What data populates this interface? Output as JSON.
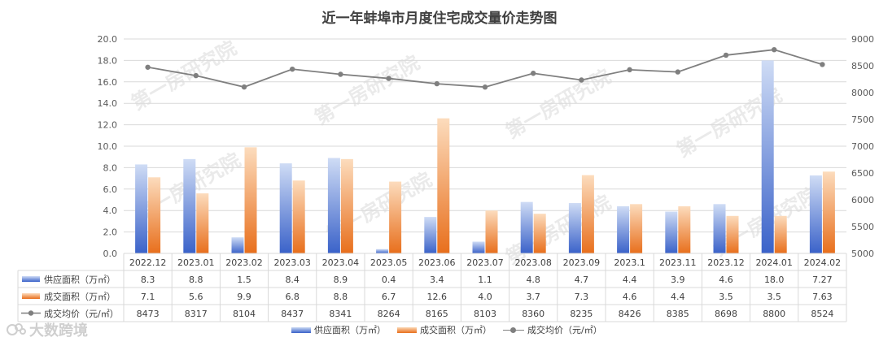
{
  "chart_data": {
    "type": "bar",
    "title": "近一年蚌埠市月度住宅成交量价走势图",
    "categories": [
      "2022.12",
      "2023.01",
      "2023.02",
      "2023.03",
      "2023.04",
      "2023.05",
      "2023.06",
      "2023.07",
      "2023.08",
      "2023.09",
      "2023.1",
      "2023.11",
      "2023.12",
      "2024.01",
      "2024.02"
    ],
    "series": [
      {
        "name": "供应面积（万㎡）",
        "type": "bar",
        "axis": "left",
        "color": "#4472c4",
        "values": [
          8.3,
          8.8,
          1.5,
          8.4,
          8.9,
          0.4,
          3.4,
          1.1,
          4.8,
          4.7,
          4.4,
          3.9,
          4.6,
          18.0,
          7.27
        ],
        "labels": [
          "8.3",
          "8.8",
          "1.5",
          "8.4",
          "8.9",
          "0.4",
          "3.4",
          "1.1",
          "4.8",
          "4.7",
          "4.4",
          "3.9",
          "4.6",
          "18.0",
          "7.27"
        ]
      },
      {
        "name": "成交面积（万㎡）",
        "type": "bar",
        "axis": "left",
        "color": "#ed7d31",
        "values": [
          7.1,
          5.6,
          9.9,
          6.8,
          8.8,
          6.7,
          12.6,
          4.0,
          3.7,
          7.3,
          4.6,
          4.4,
          3.5,
          3.5,
          7.63
        ],
        "labels": [
          "7.1",
          "5.6",
          "9.9",
          "6.8",
          "8.8",
          "6.7",
          "12.6",
          "4.0",
          "3.7",
          "7.3",
          "4.6",
          "4.4",
          "3.5",
          "3.5",
          "7.63"
        ]
      },
      {
        "name": "成交均价（元/㎡）",
        "type": "line",
        "axis": "right",
        "color": "#7f7f7f",
        "values": [
          8473,
          8317,
          8104,
          8437,
          8341,
          8264,
          8165,
          8103,
          8360,
          8235,
          8426,
          8385,
          8698,
          8800,
          8524
        ],
        "labels": [
          "8473",
          "8317",
          "8104",
          "8437",
          "8341",
          "8264",
          "8165",
          "8103",
          "8360",
          "8235",
          "8426",
          "8385",
          "8698",
          "8800",
          "8524"
        ]
      }
    ],
    "y_left": {
      "ylim": [
        0,
        20
      ],
      "ticks": [
        "0.0",
        "2.0",
        "4.0",
        "6.0",
        "8.0",
        "10.0",
        "12.0",
        "14.0",
        "16.0",
        "18.0",
        "20.0"
      ]
    },
    "y_right": {
      "ylim": [
        5000,
        9000
      ],
      "ticks": [
        "5000",
        "5500",
        "6000",
        "6500",
        "7000",
        "7500",
        "8000",
        "8500",
        "9000"
      ]
    },
    "grid": true,
    "legend": "bottom",
    "data_table": true
  },
  "watermark": "第一房研究院",
  "brand": {
    "text": "大数跨境"
  }
}
